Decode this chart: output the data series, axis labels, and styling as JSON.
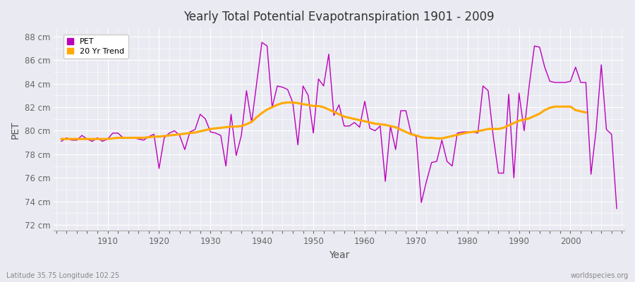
{
  "title": "Yearly Total Potential Evapotranspiration 1901 - 2009",
  "xlabel": "Year",
  "ylabel": "PET",
  "bottom_left_label": "Latitude 35.75 Longitude 102.25",
  "bottom_right_label": "worldspecies.org",
  "pet_color": "#bb00bb",
  "trend_color": "#ffaa00",
  "background_color": "#eaeaf2",
  "grid_color": "#ffffff",
  "years": [
    1901,
    1902,
    1903,
    1904,
    1905,
    1906,
    1907,
    1908,
    1909,
    1910,
    1911,
    1912,
    1913,
    1914,
    1915,
    1916,
    1917,
    1918,
    1919,
    1920,
    1921,
    1922,
    1923,
    1924,
    1925,
    1926,
    1927,
    1928,
    1929,
    1930,
    1931,
    1932,
    1933,
    1934,
    1935,
    1936,
    1937,
    1938,
    1939,
    1940,
    1941,
    1942,
    1943,
    1944,
    1945,
    1946,
    1947,
    1948,
    1949,
    1950,
    1951,
    1952,
    1953,
    1954,
    1955,
    1956,
    1957,
    1958,
    1959,
    1960,
    1961,
    1962,
    1963,
    1964,
    1965,
    1966,
    1967,
    1968,
    1969,
    1970,
    1971,
    1972,
    1973,
    1974,
    1975,
    1976,
    1977,
    1978,
    1979,
    1980,
    1981,
    1982,
    1983,
    1984,
    1985,
    1986,
    1987,
    1988,
    1989,
    1990,
    1991,
    1992,
    1993,
    1994,
    1995,
    1996,
    1997,
    1998,
    1999,
    2000,
    2001,
    2002,
    2003,
    2004,
    2005,
    2006,
    2007,
    2008,
    2009
  ],
  "pet_values": [
    79.1,
    79.4,
    79.2,
    79.2,
    79.6,
    79.3,
    79.1,
    79.4,
    79.1,
    79.3,
    79.8,
    79.8,
    79.4,
    79.4,
    79.4,
    79.3,
    79.2,
    79.5,
    79.7,
    76.8,
    79.4,
    79.8,
    80.0,
    79.6,
    78.4,
    79.9,
    80.1,
    81.4,
    81.0,
    79.9,
    79.8,
    79.6,
    77.0,
    81.4,
    77.9,
    79.6,
    83.4,
    80.7,
    84.1,
    87.5,
    87.2,
    82.0,
    83.8,
    83.7,
    83.5,
    82.4,
    78.8,
    83.8,
    83.0,
    79.8,
    84.4,
    83.8,
    86.5,
    81.3,
    82.2,
    80.4,
    80.4,
    80.7,
    80.3,
    82.5,
    80.2,
    80.0,
    80.4,
    75.7,
    80.4,
    78.4,
    81.7,
    81.7,
    79.8,
    79.5,
    73.9,
    75.7,
    77.3,
    77.4,
    79.2,
    77.4,
    77.0,
    79.8,
    79.9,
    79.9,
    79.9,
    79.8,
    83.8,
    83.4,
    79.5,
    76.4,
    76.4,
    83.1,
    76.0,
    83.2,
    80.0,
    83.9,
    87.2,
    87.1,
    85.4,
    84.2,
    84.1,
    84.1,
    84.1,
    84.2,
    85.4,
    84.1,
    84.1,
    76.3,
    80.1,
    85.6,
    80.1,
    79.7,
    73.4
  ],
  "trend_values": [
    79.3,
    79.3,
    79.3,
    79.3,
    79.3,
    79.3,
    79.3,
    79.3,
    79.3,
    79.3,
    79.35,
    79.4,
    79.4,
    79.4,
    79.4,
    79.4,
    79.4,
    79.45,
    79.5,
    79.5,
    79.55,
    79.6,
    79.65,
    79.7,
    79.75,
    79.8,
    79.85,
    79.95,
    80.05,
    80.15,
    80.2,
    80.25,
    80.3,
    80.35,
    80.35,
    80.4,
    80.55,
    80.75,
    81.15,
    81.5,
    81.8,
    82.0,
    82.2,
    82.35,
    82.4,
    82.4,
    82.35,
    82.25,
    82.2,
    82.1,
    82.1,
    82.0,
    81.8,
    81.6,
    81.4,
    81.2,
    81.1,
    81.0,
    80.9,
    80.8,
    80.7,
    80.6,
    80.55,
    80.5,
    80.4,
    80.3,
    80.1,
    79.9,
    79.7,
    79.6,
    79.45,
    79.4,
    79.4,
    79.35,
    79.35,
    79.45,
    79.55,
    79.65,
    79.75,
    79.85,
    79.9,
    79.95,
    80.05,
    80.15,
    80.15,
    80.15,
    80.25,
    80.45,
    80.65,
    80.85,
    80.95,
    81.05,
    81.25,
    81.45,
    81.75,
    81.95,
    82.05,
    82.05,
    82.05,
    82.05,
    81.75,
    81.65,
    81.55,
    null,
    null,
    null,
    null,
    null,
    null
  ],
  "ylim": [
    71.5,
    88.7
  ],
  "yticks": [
    72,
    74,
    76,
    78,
    80,
    82,
    84,
    86,
    88
  ],
  "ytick_labels": [
    "72 cm",
    "74 cm",
    "76 cm",
    "78 cm",
    "80 cm",
    "82 cm",
    "84 cm",
    "86 cm",
    "88 cm"
  ],
  "xlim": [
    1899.5,
    2010.5
  ],
  "xticks": [
    1910,
    1920,
    1930,
    1940,
    1950,
    1960,
    1970,
    1980,
    1990,
    2000
  ]
}
